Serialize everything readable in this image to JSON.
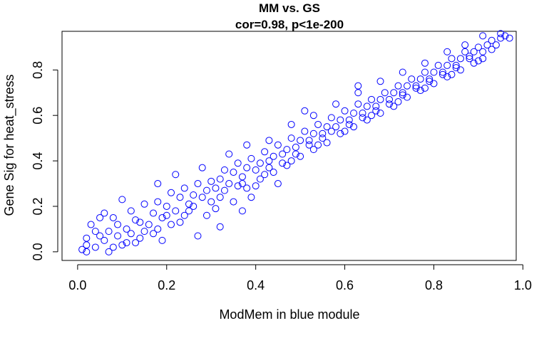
{
  "chart_data": {
    "type": "scatter",
    "title_line1": "MM vs. GS",
    "title_line2": "cor=0.98, p<1e-200",
    "xlabel": "ModMem in blue module",
    "ylabel": "Gene Sig for heat_stress",
    "xlim": [
      -0.035,
      0.985
    ],
    "ylim": [
      -0.038,
      0.97
    ],
    "x_ticks": [
      {
        "value": 0.0,
        "label": "0.0"
      },
      {
        "value": 0.2,
        "label": "0.2"
      },
      {
        "value": 0.4,
        "label": "0.4"
      },
      {
        "value": 0.6,
        "label": "0.6"
      },
      {
        "value": 0.8,
        "label": "0.8"
      },
      {
        "value": 1.0,
        "label": "1.0"
      }
    ],
    "y_ticks": [
      {
        "value": 0.0,
        "label": "0.0"
      },
      {
        "value": 0.2,
        "label": "0.2"
      },
      {
        "value": 0.4,
        "label": "0.4"
      },
      {
        "value": 0.6,
        "label": "0.6"
      },
      {
        "value": 0.8,
        "label": "0.8"
      }
    ],
    "marker_color": "#0000ff",
    "grid": false,
    "points": [
      [
        0.01,
        0.01
      ],
      [
        0.02,
        0.03
      ],
      [
        0.03,
        0.12
      ],
      [
        0.02,
        0.06
      ],
      [
        0.04,
        0.02
      ],
      [
        0.05,
        0.15
      ],
      [
        0.06,
        0.05
      ],
      [
        0.07,
        0.09
      ],
      [
        0.08,
        0.02
      ],
      [
        0.09,
        0.12
      ],
      [
        0.1,
        0.03
      ],
      [
        0.11,
        0.1
      ],
      [
        0.12,
        0.18
      ],
      [
        0.13,
        0.14
      ],
      [
        0.14,
        0.06
      ],
      [
        0.15,
        0.21
      ],
      [
        0.16,
        0.12
      ],
      [
        0.17,
        0.17
      ],
      [
        0.18,
        0.22
      ],
      [
        0.19,
        0.15
      ],
      [
        0.2,
        0.2
      ],
      [
        0.21,
        0.26
      ],
      [
        0.22,
        0.18
      ],
      [
        0.23,
        0.24
      ],
      [
        0.24,
        0.28
      ],
      [
        0.25,
        0.21
      ],
      [
        0.26,
        0.25
      ],
      [
        0.27,
        0.3
      ],
      [
        0.28,
        0.24
      ],
      [
        0.29,
        0.27
      ],
      [
        0.3,
        0.31
      ],
      [
        0.31,
        0.28
      ],
      [
        0.32,
        0.32
      ],
      [
        0.33,
        0.36
      ],
      [
        0.34,
        0.3
      ],
      [
        0.35,
        0.35
      ],
      [
        0.36,
        0.39
      ],
      [
        0.37,
        0.33
      ],
      [
        0.38,
        0.37
      ],
      [
        0.39,
        0.41
      ],
      [
        0.4,
        0.36
      ],
      [
        0.41,
        0.39
      ],
      [
        0.42,
        0.44
      ],
      [
        0.43,
        0.4
      ],
      [
        0.44,
        0.42
      ],
      [
        0.45,
        0.47
      ],
      [
        0.46,
        0.43
      ],
      [
        0.47,
        0.45
      ],
      [
        0.48,
        0.5
      ],
      [
        0.49,
        0.46
      ],
      [
        0.5,
        0.49
      ],
      [
        0.51,
        0.53
      ],
      [
        0.52,
        0.49
      ],
      [
        0.53,
        0.52
      ],
      [
        0.54,
        0.56
      ],
      [
        0.55,
        0.52
      ],
      [
        0.56,
        0.55
      ],
      [
        0.57,
        0.59
      ],
      [
        0.58,
        0.55
      ],
      [
        0.59,
        0.58
      ],
      [
        0.6,
        0.62
      ],
      [
        0.61,
        0.58
      ],
      [
        0.62,
        0.61
      ],
      [
        0.63,
        0.65
      ],
      [
        0.64,
        0.61
      ],
      [
        0.65,
        0.64
      ],
      [
        0.66,
        0.67
      ],
      [
        0.67,
        0.64
      ],
      [
        0.68,
        0.67
      ],
      [
        0.69,
        0.7
      ],
      [
        0.7,
        0.67
      ],
      [
        0.71,
        0.7
      ],
      [
        0.72,
        0.73
      ],
      [
        0.73,
        0.7
      ],
      [
        0.74,
        0.73
      ],
      [
        0.75,
        0.76
      ],
      [
        0.76,
        0.73
      ],
      [
        0.77,
        0.76
      ],
      [
        0.78,
        0.79
      ],
      [
        0.79,
        0.76
      ],
      [
        0.8,
        0.79
      ],
      [
        0.81,
        0.82
      ],
      [
        0.82,
        0.79
      ],
      [
        0.83,
        0.82
      ],
      [
        0.84,
        0.85
      ],
      [
        0.85,
        0.82
      ],
      [
        0.86,
        0.85
      ],
      [
        0.87,
        0.88
      ],
      [
        0.88,
        0.85
      ],
      [
        0.89,
        0.88
      ],
      [
        0.9,
        0.9
      ],
      [
        0.91,
        0.88
      ],
      [
        0.92,
        0.91
      ],
      [
        0.93,
        0.93
      ],
      [
        0.94,
        0.91
      ],
      [
        0.95,
        0.94
      ],
      [
        0.96,
        0.95
      ],
      [
        0.97,
        0.94
      ],
      [
        0.02,
        0.0
      ],
      [
        0.05,
        0.07
      ],
      [
        0.08,
        0.15
      ],
      [
        0.11,
        0.04
      ],
      [
        0.14,
        0.13
      ],
      [
        0.17,
        0.08
      ],
      [
        0.2,
        0.16
      ],
      [
        0.23,
        0.13
      ],
      [
        0.26,
        0.2
      ],
      [
        0.29,
        0.16
      ],
      [
        0.32,
        0.24
      ],
      [
        0.35,
        0.22
      ],
      [
        0.38,
        0.28
      ],
      [
        0.41,
        0.32
      ],
      [
        0.44,
        0.35
      ],
      [
        0.47,
        0.38
      ],
      [
        0.5,
        0.42
      ],
      [
        0.53,
        0.45
      ],
      [
        0.56,
        0.48
      ],
      [
        0.59,
        0.52
      ],
      [
        0.62,
        0.55
      ],
      [
        0.65,
        0.58
      ],
      [
        0.68,
        0.61
      ],
      [
        0.71,
        0.64
      ],
      [
        0.74,
        0.68
      ],
      [
        0.77,
        0.71
      ],
      [
        0.8,
        0.74
      ],
      [
        0.83,
        0.77
      ],
      [
        0.86,
        0.8
      ],
      [
        0.89,
        0.83
      ],
      [
        0.07,
        0.0
      ],
      [
        0.12,
        0.08
      ],
      [
        0.18,
        0.1
      ],
      [
        0.24,
        0.16
      ],
      [
        0.3,
        0.22
      ],
      [
        0.36,
        0.29
      ],
      [
        0.42,
        0.34
      ],
      [
        0.48,
        0.4
      ],
      [
        0.54,
        0.47
      ],
      [
        0.6,
        0.53
      ],
      [
        0.66,
        0.6
      ],
      [
        0.72,
        0.66
      ],
      [
        0.78,
        0.72
      ],
      [
        0.84,
        0.78
      ],
      [
        0.9,
        0.84
      ],
      [
        0.27,
        0.07
      ],
      [
        0.32,
        0.11
      ],
      [
        0.37,
        0.18
      ],
      [
        0.39,
        0.24
      ],
      [
        0.45,
        0.3
      ],
      [
        0.1,
        0.23
      ],
      [
        0.18,
        0.3
      ],
      [
        0.22,
        0.34
      ],
      [
        0.28,
        0.37
      ],
      [
        0.34,
        0.43
      ],
      [
        0.38,
        0.47
      ],
      [
        0.43,
        0.49
      ],
      [
        0.48,
        0.56
      ],
      [
        0.53,
        0.6
      ],
      [
        0.58,
        0.65
      ],
      [
        0.63,
        0.7
      ],
      [
        0.68,
        0.75
      ],
      [
        0.73,
        0.79
      ],
      [
        0.78,
        0.83
      ],
      [
        0.83,
        0.88
      ],
      [
        0.87,
        0.91
      ],
      [
        0.91,
        0.95
      ],
      [
        0.95,
        0.96
      ],
      [
        0.51,
        0.62
      ],
      [
        0.63,
        0.73
      ],
      [
        0.04,
        0.09
      ],
      [
        0.06,
        0.17
      ],
      [
        0.09,
        0.07
      ],
      [
        0.13,
        0.04
      ],
      [
        0.15,
        0.09
      ],
      [
        0.19,
        0.05
      ],
      [
        0.21,
        0.12
      ],
      [
        0.25,
        0.18
      ],
      [
        0.31,
        0.19
      ],
      [
        0.33,
        0.27
      ],
      [
        0.37,
        0.3
      ],
      [
        0.4,
        0.29
      ],
      [
        0.43,
        0.37
      ],
      [
        0.46,
        0.39
      ],
      [
        0.49,
        0.43
      ],
      [
        0.52,
        0.47
      ],
      [
        0.55,
        0.5
      ],
      [
        0.57,
        0.53
      ],
      [
        0.61,
        0.56
      ],
      [
        0.64,
        0.59
      ],
      [
        0.67,
        0.62
      ],
      [
        0.7,
        0.65
      ],
      [
        0.73,
        0.69
      ],
      [
        0.76,
        0.72
      ],
      [
        0.79,
        0.75
      ],
      [
        0.82,
        0.78
      ],
      [
        0.85,
        0.81
      ],
      [
        0.88,
        0.86
      ],
      [
        0.91,
        0.85
      ],
      [
        0.93,
        0.89
      ]
    ]
  }
}
